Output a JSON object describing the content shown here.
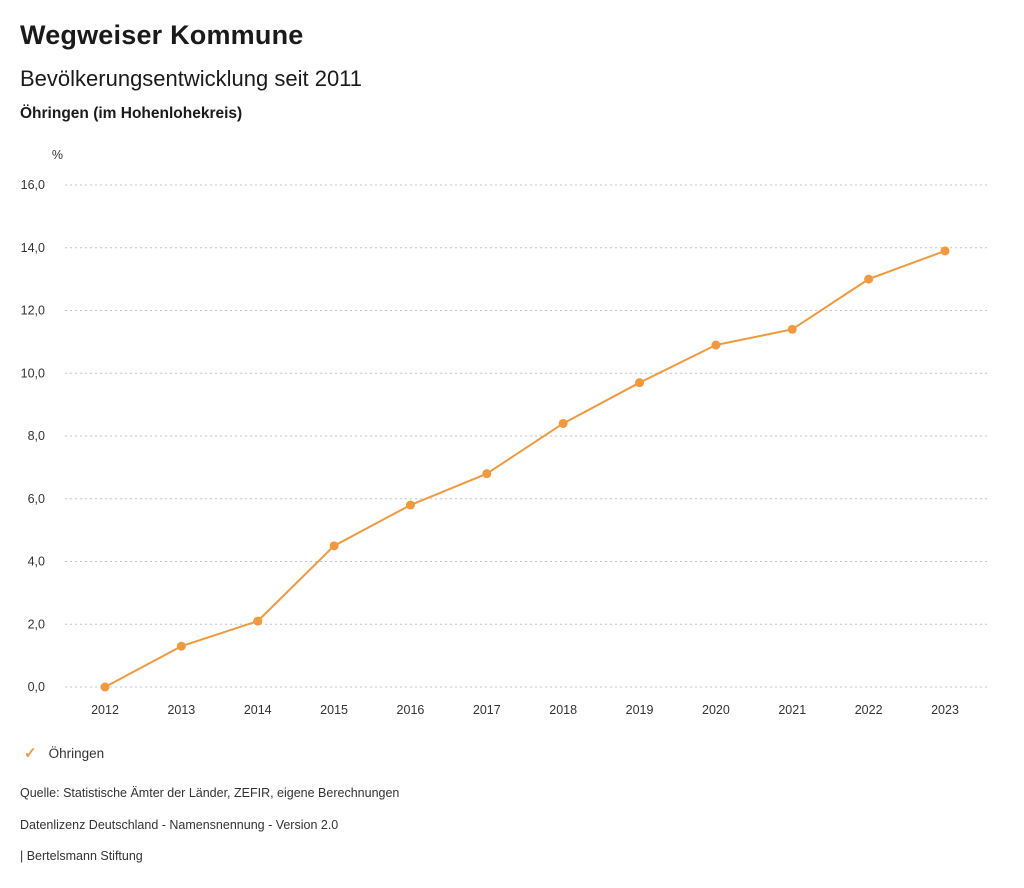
{
  "header": {
    "title": "Wegweiser Kommune",
    "subtitle": "Bevölkerungsentwicklung seit 2011",
    "location": "Öhringen (im Hohenlohekreis)"
  },
  "icons": {
    "check": "✓"
  },
  "chart_data": {
    "type": "line",
    "title": "Bevölkerungsentwicklung seit 2011",
    "subtitle": "Öhringen (im Hohenlohekreis)",
    "unit_label": "%",
    "ylabel": "%",
    "xlabel": "",
    "categories": [
      "2012",
      "2013",
      "2014",
      "2015",
      "2016",
      "2017",
      "2018",
      "2019",
      "2020",
      "2021",
      "2022",
      "2023"
    ],
    "series": [
      {
        "name": "Öhringen",
        "color": "#f0993e",
        "values": [
          0.0,
          1.3,
          2.1,
          4.5,
          5.8,
          6.8,
          8.4,
          9.7,
          10.9,
          11.4,
          13.0,
          13.9
        ]
      }
    ],
    "ylim": [
      0,
      16
    ],
    "ytick_values": [
      0,
      2,
      4,
      6,
      8,
      10,
      12,
      14,
      16
    ],
    "ytick_labels": [
      "0,0",
      "2,0",
      "4,0",
      "6,0",
      "8,0",
      "10,0",
      "12,0",
      "14,0",
      "16,0"
    ],
    "grid": "horizontal-dotted",
    "legend_position": "bottom-left"
  },
  "legend": {
    "items": [
      {
        "label": "Öhringen",
        "color": "#f0993e",
        "marker": "check"
      }
    ]
  },
  "footer": {
    "source": "Quelle: Statistische Ämter der Länder, ZEFIR, eigene Berechnungen",
    "license": "Datenlizenz Deutschland - Namensnennung - Version 2.0",
    "attribution": "| Bertelsmann Stiftung"
  }
}
